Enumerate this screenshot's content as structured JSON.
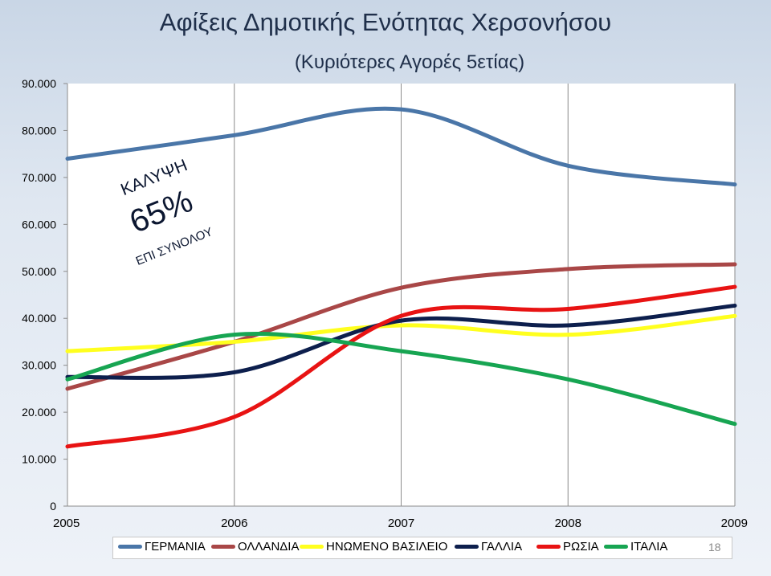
{
  "title": "Αφίξεις Δημοτικής Ενότητας Χερσονήσου",
  "subtitle": "(Κυριότερες Αγορές 5ετίας)",
  "callout": {
    "top": "ΚΑΛΥΨΗ",
    "value": "65%",
    "bottom": "ΕΠΙ ΣΥΝΟΛΟΥ"
  },
  "page_number": "18",
  "chart_data": {
    "type": "line",
    "x": [
      "2005",
      "2006",
      "2007",
      "2008",
      "2009"
    ],
    "ylim": [
      0,
      90000
    ],
    "yticks": [
      0,
      10000,
      20000,
      30000,
      40000,
      50000,
      60000,
      70000,
      80000,
      90000
    ],
    "ytick_labels": [
      "0",
      "10.000",
      "20.000",
      "30.000",
      "40.000",
      "50.000",
      "60.000",
      "70.000",
      "80.000",
      "90.000"
    ],
    "grid": "vertical",
    "legend": "bottom",
    "smooth": true,
    "series": [
      {
        "name": "ΓΕΡΜΑΝΙΑ",
        "color": "#4a76a8",
        "values": [
          74000,
          79000,
          84500,
          72500,
          68500
        ]
      },
      {
        "name": "ΟΛΛΑΝΔΙΑ",
        "color": "#a94747",
        "values": [
          25000,
          35000,
          46500,
          50500,
          51500
        ]
      },
      {
        "name": "ΗΝΩΜΕΝΟ ΒΑΣΙΛΕΙΟ",
        "color": "#ffff1e",
        "values": [
          33000,
          35000,
          38500,
          36500,
          40500
        ]
      },
      {
        "name": "ΓΑΛΛΙΑ",
        "color": "#0d1f4d",
        "values": [
          27500,
          28500,
          39500,
          38500,
          42700
        ]
      },
      {
        "name": "ΡΩΣΙΑ",
        "color": "#e81313",
        "values": [
          12700,
          19000,
          40500,
          42000,
          46700
        ]
      },
      {
        "name": "ΙΤΑΛΙΑ",
        "color": "#17a552",
        "values": [
          27000,
          36500,
          33000,
          27000,
          17500
        ]
      }
    ]
  }
}
